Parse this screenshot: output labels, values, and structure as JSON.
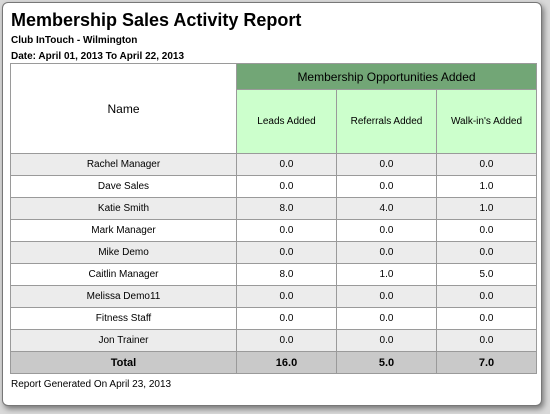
{
  "header": {
    "title": "Membership Sales Activity Report",
    "club": "Club InTouch - Wilmington",
    "date": "Date: April 01, 2013 To April 22, 2013"
  },
  "table": {
    "group": "Membership Opportunities Added",
    "columns": [
      "Name",
      "Leads Added",
      "Referrals Added",
      "Walk-in's Added"
    ],
    "rows": [
      [
        "Rachel Manager",
        "0.0",
        "0.0",
        "0.0"
      ],
      [
        "Dave Sales",
        "0.0",
        "0.0",
        "1.0"
      ],
      [
        "Katie Smith",
        "8.0",
        "4.0",
        "1.0"
      ],
      [
        "Mark Manager",
        "0.0",
        "0.0",
        "0.0"
      ],
      [
        "Mike Demo",
        "0.0",
        "0.0",
        "0.0"
      ],
      [
        "Caitlin Manager",
        "8.0",
        "1.0",
        "5.0"
      ],
      [
        "Melissa Demo11",
        "0.0",
        "0.0",
        "0.0"
      ],
      [
        "Fitness Staff",
        "0.0",
        "0.0",
        "0.0"
      ],
      [
        "Jon Trainer",
        "0.0",
        "0.0",
        "0.0"
      ]
    ],
    "total": [
      "Total",
      "16.0",
      "5.0",
      "7.0"
    ]
  },
  "footer": "Report Generated On April 23, 2013"
}
